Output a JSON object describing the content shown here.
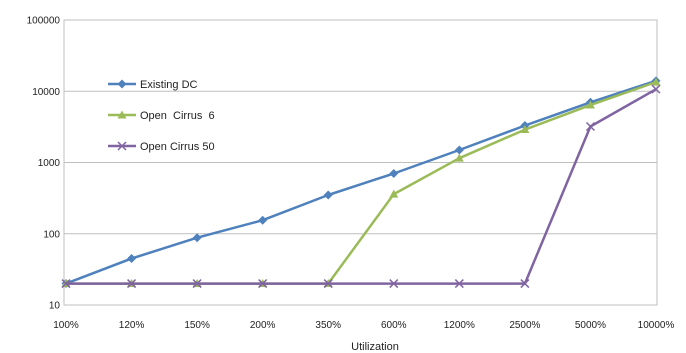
{
  "chart_data": {
    "type": "line",
    "title": "",
    "xlabel": "Utilization",
    "ylabel": "",
    "yscale": "log",
    "ylim": [
      10,
      100000
    ],
    "y_ticks": [
      "10",
      "100",
      "1000",
      "10000",
      "100000"
    ],
    "categories": [
      "100%",
      "120%",
      "150%",
      "200%",
      "350%",
      "600%",
      "1200%",
      "2500%",
      "5000%",
      "10000%"
    ],
    "grid": "horizontal",
    "legend_position": "left-inside",
    "series": [
      {
        "name": "Existing DC",
        "color": "#4f81bd",
        "marker": "diamond",
        "values": [
          20,
          45,
          88,
          155,
          350,
          700,
          1500,
          3300,
          7000,
          14000
        ]
      },
      {
        "name": "Open  Cirrus  6",
        "color": "#9bbb59",
        "marker": "triangle",
        "values": [
          20,
          20,
          20,
          20,
          20,
          360,
          1150,
          2900,
          6400,
          13500
        ]
      },
      {
        "name": "Open Cirrus 50",
        "color": "#8064a2",
        "marker": "cross",
        "values": [
          20,
          20,
          20,
          20,
          20,
          20,
          20,
          20,
          3200,
          10700
        ]
      }
    ]
  }
}
